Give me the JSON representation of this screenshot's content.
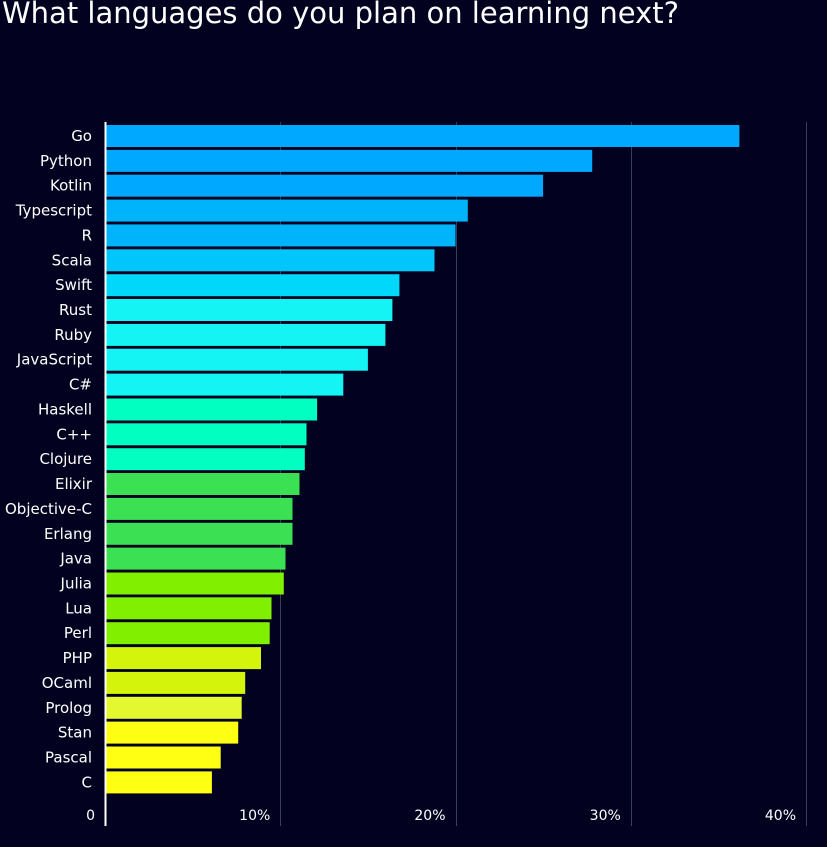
{
  "chart_data": {
    "type": "bar",
    "orientation": "horizontal",
    "title": "What languages do you plan on learning next?",
    "xlabel": "",
    "ylabel": "",
    "xlim": [
      0,
      40
    ],
    "x_ticks": [
      "0",
      "10%",
      "20%",
      "30%",
      "40%"
    ],
    "grid": true,
    "categories": [
      "Go",
      "Python",
      "Kotlin",
      "Typescript",
      "R",
      "Scala",
      "Swift",
      "Rust",
      "Ruby",
      "JavaScript",
      "C#",
      "Haskell",
      "C++",
      "Clojure",
      "Elixir",
      "Objective-C",
      "Erlang",
      "Java",
      "Julia",
      "Lua",
      "Perl",
      "PHP",
      "OCaml",
      "Prolog",
      "Stan",
      "Pascal",
      "C"
    ],
    "values": [
      36.2,
      27.8,
      25.0,
      20.7,
      20.0,
      18.8,
      16.8,
      16.4,
      16.0,
      15.0,
      13.6,
      12.1,
      11.5,
      11.4,
      11.1,
      10.7,
      10.7,
      10.3,
      10.2,
      9.5,
      9.4,
      8.9,
      8.0,
      7.8,
      7.6,
      6.6,
      6.1
    ],
    "colors": [
      "#00a8ff",
      "#00a8ff",
      "#00a8ff",
      "#00b4fb",
      "#00b4fb",
      "#00c6fb",
      "#00d8fb",
      "#14f4f4",
      "#14f4f4",
      "#14f4f4",
      "#14f4f4",
      "#00ffc0",
      "#00ffc0",
      "#00ffc0",
      "#3ce053",
      "#3ce053",
      "#3ce053",
      "#3ce053",
      "#80f000",
      "#80f000",
      "#80f000",
      "#d4f40c",
      "#d4f40c",
      "#e4f830",
      "#ffff14",
      "#ffff14",
      "#ffff14"
    ]
  },
  "colors": {
    "background": "#020220",
    "grid": "#3a3a5a",
    "axis": "#ffffff"
  }
}
